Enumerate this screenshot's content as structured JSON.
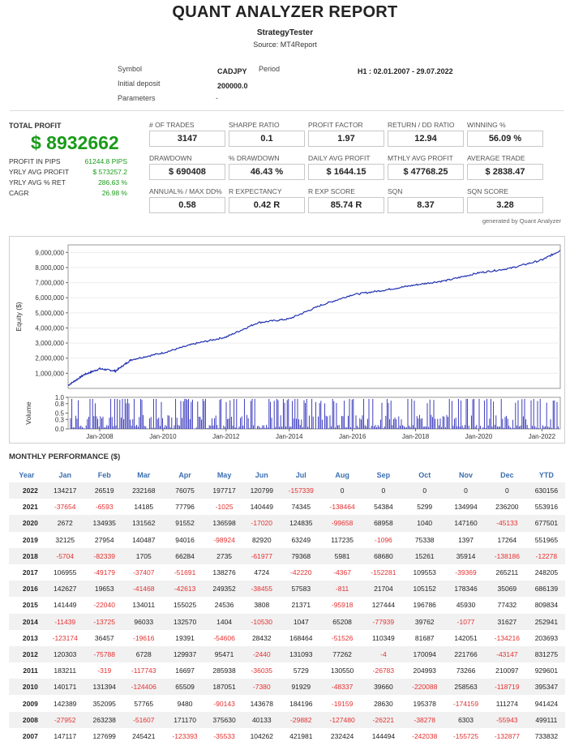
{
  "header": {
    "title": "QUANT ANALYZER REPORT",
    "strategy": "StrategyTester",
    "source": "Source: MT4Report"
  },
  "meta": {
    "symbol_label": "Symbol",
    "symbol_value": "CADJPY",
    "period_label": "Period",
    "period_value": "H1 : 02.01.2007 - 29.07.2022",
    "deposit_label": "Initial deposit",
    "deposit_value": "200000.0",
    "params_label": "Parameters",
    "params_value": "-"
  },
  "summary": {
    "total_profit_label": "TOTAL PROFIT",
    "total_profit_value": "$ 8932662",
    "rows": [
      {
        "label": "PROFIT IN PIPS",
        "value": "61244.8 PIPS"
      },
      {
        "label": "YRLY AVG PROFIT",
        "value": "$ 573257.2"
      },
      {
        "label": "YRLY AVG % RET",
        "value": "286.63 %"
      },
      {
        "label": "CAGR",
        "value": "26.98 %"
      }
    ]
  },
  "stats": [
    {
      "label": "# OF TRADES",
      "value": "3147"
    },
    {
      "label": "SHARPE RATIO",
      "value": "0.1"
    },
    {
      "label": "PROFIT FACTOR",
      "value": "1.97"
    },
    {
      "label": "RETURN / DD RATIO",
      "value": "12.94"
    },
    {
      "label": "WINNING %",
      "value": "56.09 %"
    },
    {
      "label": "DRAWDOWN",
      "value": "$ 690408"
    },
    {
      "label": "% DRAWDOWN",
      "value": "46.43 %"
    },
    {
      "label": "DAILY AVG PROFIT",
      "value": "$ 1644.15"
    },
    {
      "label": "MTHLY AVG PROFIT",
      "value": "$ 47768.25"
    },
    {
      "label": "AVERAGE TRADE",
      "value": "$ 2838.47"
    },
    {
      "label": "ANNUAL% / MAX DD%",
      "value": "0.58"
    },
    {
      "label": "R EXPECTANCY",
      "value": "0.42 R"
    },
    {
      "label": "R EXP SCORE",
      "value": "85.74 R"
    },
    {
      "label": "SQN",
      "value": "8.37"
    },
    {
      "label": "SQN SCORE",
      "value": "3.28"
    }
  ],
  "generated_by": "generated by Quant Analyzer",
  "chart_data": {
    "type": "line",
    "ylabel": "Equity ($)",
    "ylim": [
      0,
      9500000
    ],
    "y_ticks": [
      "9,000,000",
      "8,000,000",
      "7,000,000",
      "6,000,000",
      "5,000,000",
      "4,000,000",
      "3,000,000",
      "2,000,000",
      "1,000,000"
    ],
    "x_ticks": [
      "Jan-2008",
      "Jan-2010",
      "Jan-2012",
      "Jan-2014",
      "Jan-2016",
      "Jan-2018",
      "Jan-2020",
      "Jan-2022"
    ],
    "x": [
      2007.0,
      2007.5,
      2008.0,
      2008.5,
      2009.0,
      2010.0,
      2011.0,
      2012.0,
      2013.0,
      2014.0,
      2015.0,
      2016.0,
      2017.0,
      2018.0,
      2019.0,
      2020.0,
      2021.0,
      2022.0,
      2022.58
    ],
    "values": [
      200000,
      900000,
      1300000,
      1150000,
      1900000,
      2350000,
      2950000,
      3400000,
      4350000,
      4600000,
      5500000,
      6200000,
      6500000,
      6850000,
      7150000,
      7650000,
      7950000,
      8500000,
      9130000
    ],
    "volume_ylabel": "Volume",
    "volume_ticks": [
      "1.0",
      "0.8",
      "0.5",
      "0.3",
      "0.0"
    ],
    "volume_ylim": [
      0,
      1.0
    ],
    "grid": true
  },
  "monthly": {
    "title": "MONTHLY PERFORMANCE ($)",
    "columns": [
      "Year",
      "Jan",
      "Feb",
      "Mar",
      "Apr",
      "May",
      "Jun",
      "Jul",
      "Aug",
      "Sep",
      "Oct",
      "Nov",
      "Dec",
      "YTD"
    ],
    "rows": [
      [
        "2022",
        "134217",
        "26519",
        "232168",
        "76075",
        "197717",
        "120799",
        "-157339",
        "0",
        "0",
        "0",
        "0",
        "0",
        "630156"
      ],
      [
        "2021",
        "-37654",
        "-6593",
        "14185",
        "77796",
        "-1025",
        "140449",
        "74345",
        "-138464",
        "54384",
        "5299",
        "134994",
        "236200",
        "553916"
      ],
      [
        "2020",
        "2672",
        "134935",
        "131562",
        "91552",
        "136598",
        "-17020",
        "124835",
        "-99658",
        "68958",
        "1040",
        "147160",
        "-45133",
        "677501"
      ],
      [
        "2019",
        "32125",
        "27954",
        "140487",
        "94016",
        "-98924",
        "82920",
        "63249",
        "117235",
        "-1096",
        "75338",
        "1397",
        "17264",
        "551965"
      ],
      [
        "2018",
        "-5704",
        "-82339",
        "1705",
        "66284",
        "2735",
        "-61977",
        "79368",
        "5981",
        "68680",
        "15261",
        "35914",
        "-138186",
        "-12278"
      ],
      [
        "2017",
        "106955",
        "-49179",
        "-37407",
        "-51691",
        "138276",
        "4724",
        "-42220",
        "-4367",
        "-152281",
        "109553",
        "-39369",
        "265211",
        "248205"
      ],
      [
        "2016",
        "142627",
        "19653",
        "-41468",
        "-42613",
        "249352",
        "-38455",
        "57583",
        "-811",
        "21704",
        "105152",
        "178346",
        "35069",
        "686139"
      ],
      [
        "2015",
        "141449",
        "-22040",
        "134011",
        "155025",
        "24536",
        "3808",
        "21371",
        "-95918",
        "127444",
        "196786",
        "45930",
        "77432",
        "809834"
      ],
      [
        "2014",
        "-11439",
        "-13725",
        "96033",
        "132570",
        "1404",
        "-10530",
        "1047",
        "65208",
        "-77939",
        "39762",
        "-1077",
        "31627",
        "252941"
      ],
      [
        "2013",
        "-123174",
        "36457",
        "-19616",
        "19391",
        "-54606",
        "28432",
        "168464",
        "-51526",
        "110349",
        "81687",
        "142051",
        "-134216",
        "203693"
      ],
      [
        "2012",
        "120303",
        "-75788",
        "6728",
        "129937",
        "95471",
        "-2440",
        "131093",
        "77262",
        "-4",
        "170094",
        "221766",
        "-43147",
        "831275"
      ],
      [
        "2011",
        "183211",
        "-319",
        "-117743",
        "16697",
        "285938",
        "-36035",
        "5729",
        "130550",
        "-26783",
        "204993",
        "73266",
        "210097",
        "929601"
      ],
      [
        "2010",
        "140171",
        "131394",
        "-124406",
        "65509",
        "187051",
        "-7380",
        "91929",
        "-48337",
        "39660",
        "-220088",
        "258563",
        "-118719",
        "395347"
      ],
      [
        "2009",
        "142389",
        "352095",
        "57765",
        "9480",
        "-90143",
        "143678",
        "184196",
        "-19159",
        "28630",
        "195378",
        "-174159",
        "111274",
        "941424"
      ],
      [
        "2008",
        "-27952",
        "263238",
        "-51607",
        "171170",
        "375630",
        "40133",
        "-29882",
        "-127480",
        "-26221",
        "-38278",
        "6303",
        "-55943",
        "499111"
      ],
      [
        "2007",
        "147117",
        "127699",
        "245421",
        "-123393",
        "-35533",
        "104262",
        "421981",
        "232424",
        "144494",
        "-242038",
        "-155725",
        "-132877",
        "733832"
      ]
    ]
  }
}
